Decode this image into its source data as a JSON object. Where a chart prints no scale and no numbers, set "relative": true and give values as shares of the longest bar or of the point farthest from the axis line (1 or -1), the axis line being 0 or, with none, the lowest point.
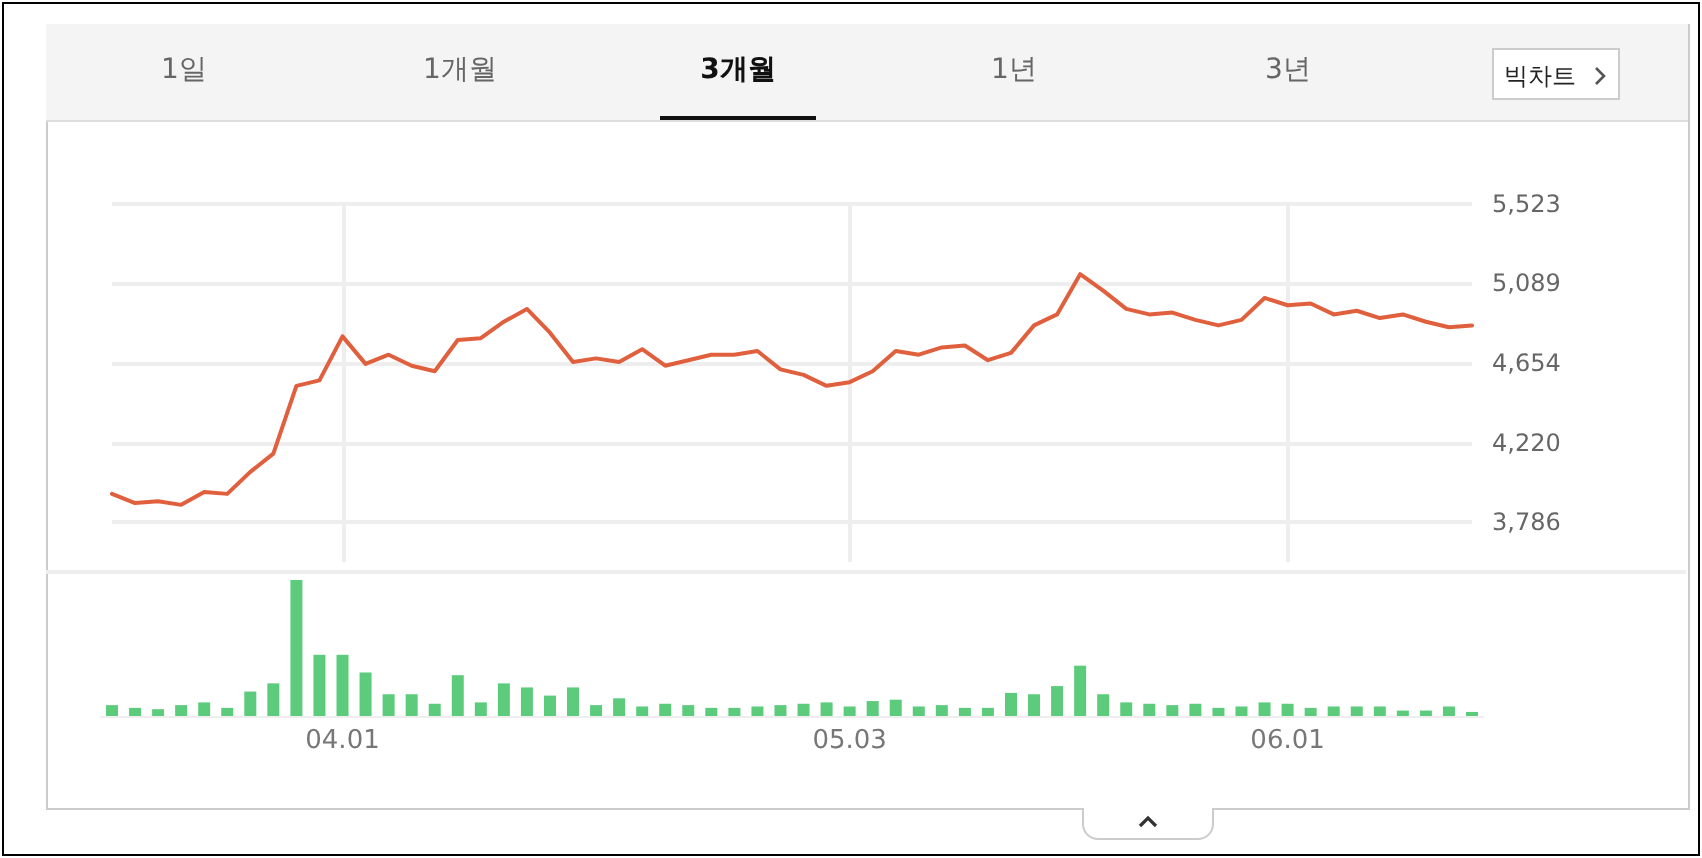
{
  "chart_data": [
    {
      "type": "line",
      "annotations": [
        "1일",
        "1개월",
        "3개월",
        "1년",
        "3년",
        "빅차트"
      ],
      "categories": [
        null,
        null,
        null,
        null,
        null,
        null,
        null,
        null,
        null,
        null,
        "04.01",
        null,
        null,
        null,
        null,
        null,
        null,
        null,
        null,
        null,
        null,
        null,
        null,
        null,
        null,
        null,
        null,
        null,
        null,
        null,
        null,
        null,
        "05.03",
        null,
        null,
        null,
        null,
        null,
        null,
        null,
        null,
        null,
        null,
        null,
        null,
        null,
        null,
        null,
        null,
        null,
        null,
        "06.01",
        null,
        null,
        null,
        null,
        null,
        null,
        null,
        null
      ],
      "series": [
        {
          "color": "#e0603e",
          "values": [
            3940,
            3890,
            3900,
            3880,
            3950,
            3940,
            4060,
            4160,
            4530,
            4560,
            4800,
            4650,
            4700,
            4640,
            4610,
            4780,
            4790,
            4880,
            4950,
            4820,
            4660,
            4680,
            4660,
            4730,
            4640,
            4670,
            4700,
            4700,
            4720,
            4620,
            4590,
            4530,
            4550,
            4610,
            4720,
            4700,
            4740,
            4750,
            4670,
            4710,
            4860,
            4920,
            5140,
            5050,
            4950,
            4920,
            4930,
            4890,
            4860,
            4890,
            5010,
            4970,
            4980,
            4920,
            4940,
            4900,
            4920,
            4880,
            4850,
            4860
          ]
        }
      ],
      "ylim": [
        3568,
        5523
      ],
      "yticks": [
        {
          "value": 3786,
          "label": "3,786"
        },
        {
          "value": 4220,
          "label": "4,220"
        },
        {
          "value": 4654,
          "label": "4,654"
        },
        {
          "value": 5089,
          "label": "5,089"
        },
        {
          "value": 5523,
          "label": "5,523"
        }
      ],
      "grid": true,
      "tick_labels": "y",
      "marker": "none",
      "line_style": "solid"
    },
    {
      "type": "bar",
      "relative": true,
      "tick_labels": "x",
      "categories": [
        null,
        null,
        null,
        null,
        null,
        null,
        null,
        null,
        null,
        null,
        "04.01",
        null,
        null,
        null,
        null,
        null,
        null,
        null,
        null,
        null,
        null,
        null,
        null,
        null,
        null,
        null,
        null,
        null,
        null,
        null,
        null,
        null,
        "05.03",
        null,
        null,
        null,
        null,
        null,
        null,
        null,
        null,
        null,
        null,
        null,
        null,
        null,
        null,
        null,
        null,
        null,
        null,
        "06.01",
        null,
        null,
        null,
        null,
        null,
        null,
        null,
        null
      ],
      "series": [
        {
          "color": "#5ccb7c",
          "values": [
            0.08,
            0.06,
            0.05,
            0.08,
            0.1,
            0.06,
            0.18,
            0.24,
            1,
            0.45,
            0.45,
            0.32,
            0.16,
            0.16,
            0.09,
            0.3,
            0.1,
            0.24,
            0.21,
            0.15,
            0.21,
            0.08,
            0.13,
            0.07,
            0.09,
            0.08,
            0.06,
            0.06,
            0.07,
            0.08,
            0.09,
            0.1,
            0.07,
            0.11,
            0.12,
            0.07,
            0.08,
            0.06,
            0.06,
            0.17,
            0.16,
            0.22,
            0.37,
            0.16,
            0.1,
            0.09,
            0.08,
            0.09,
            0.06,
            0.07,
            0.1,
            0.09,
            0.06,
            0.07,
            0.07,
            0.07,
            0.04,
            0.04,
            0.07,
            0.03
          ]
        }
      ]
    }
  ]
}
